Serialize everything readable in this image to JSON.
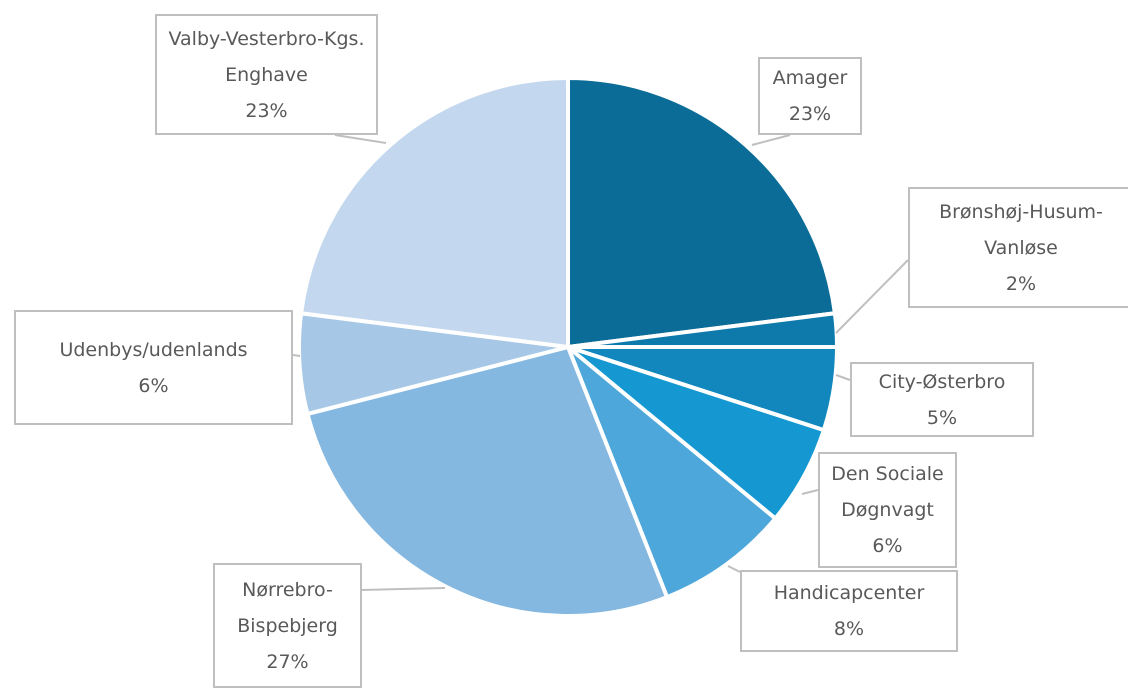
{
  "chart_data": {
    "type": "pie",
    "categories": [
      "Amager",
      "Brønshøj-Husum-Vanløse",
      "City-Østerbro",
      "Den Sociale Døgnvagt",
      "Handicapcenter",
      "Nørrebro-Bispebjerg",
      "Udenbys/udenlands",
      "Valby-Vesterbro-Kgs. Enghave"
    ],
    "values": [
      23,
      2,
      5,
      6,
      8,
      27,
      6,
      23
    ],
    "value_labels": [
      "23%",
      "2%",
      "5%",
      "6%",
      "8%",
      "27%",
      "6%",
      "23%"
    ],
    "colors": [
      "#0b6c97",
      "#0e7aab",
      "#1287bd",
      "#1598d1",
      "#4ea7da",
      "#84b8e0",
      "#a6c8e6",
      "#c3d8ee"
    ]
  }
}
